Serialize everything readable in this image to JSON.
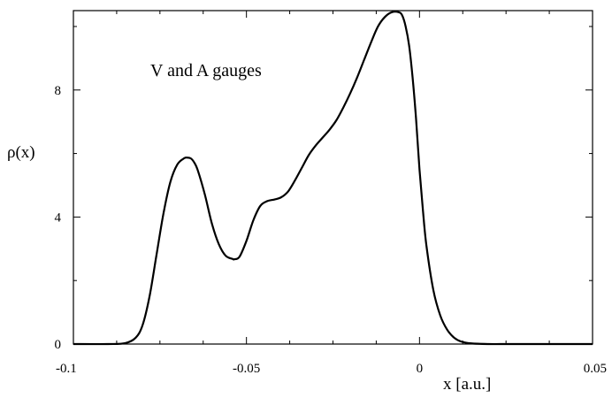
{
  "chart_data": {
    "type": "line",
    "title": "",
    "annotation": "V and A gauges",
    "xlabel": "x [a.u.]",
    "ylabel": "ρ(x)",
    "xlim": [
      -0.1,
      0.05
    ],
    "ylim": [
      0,
      10.5
    ],
    "x_ticks": [
      -0.1,
      -0.05,
      0,
      0.05
    ],
    "x_tick_labels": [
      "-0.1",
      "-0.05",
      "0",
      "0.05"
    ],
    "y_ticks": [
      0,
      4,
      8
    ],
    "y_tick_labels": [
      "0",
      "4",
      "8"
    ],
    "grid": false,
    "series": [
      {
        "color": "#000000",
        "x": [
          -0.1,
          -0.09,
          -0.085,
          -0.082,
          -0.08,
          -0.078,
          -0.076,
          -0.074,
          -0.072,
          -0.07,
          -0.068,
          -0.067,
          -0.066,
          -0.065,
          -0.064,
          -0.062,
          -0.06,
          -0.058,
          -0.056,
          -0.054,
          -0.0535,
          -0.052,
          -0.05,
          -0.048,
          -0.046,
          -0.044,
          -0.042,
          -0.04,
          -0.038,
          -0.036,
          -0.034,
          -0.032,
          -0.03,
          -0.028,
          -0.026,
          -0.024,
          -0.022,
          -0.02,
          -0.018,
          -0.016,
          -0.014,
          -0.012,
          -0.01,
          -0.008,
          -0.006,
          -0.005,
          -0.004,
          -0.003,
          -0.002,
          -0.001,
          0,
          0.001,
          0.002,
          0.004,
          0.006,
          0.008,
          0.01,
          0.012,
          0.015,
          0.02,
          0.025,
          0.03,
          0.04,
          0.05
        ],
        "y": [
          0,
          0,
          0.03,
          0.2,
          0.6,
          1.5,
          2.8,
          4.1,
          5.1,
          5.65,
          5.85,
          5.87,
          5.84,
          5.7,
          5.45,
          4.7,
          3.8,
          3.15,
          2.78,
          2.68,
          2.67,
          2.75,
          3.25,
          3.9,
          4.35,
          4.5,
          4.55,
          4.62,
          4.8,
          5.15,
          5.55,
          5.95,
          6.25,
          6.5,
          6.75,
          7.05,
          7.45,
          7.9,
          8.4,
          8.95,
          9.5,
          10.0,
          10.3,
          10.45,
          10.45,
          10.35,
          10.0,
          9.4,
          8.4,
          7.1,
          5.5,
          4.2,
          3.1,
          1.7,
          0.9,
          0.45,
          0.2,
          0.08,
          0.02,
          0.0,
          0.0,
          0.0,
          0.0,
          0.0
        ]
      }
    ]
  }
}
